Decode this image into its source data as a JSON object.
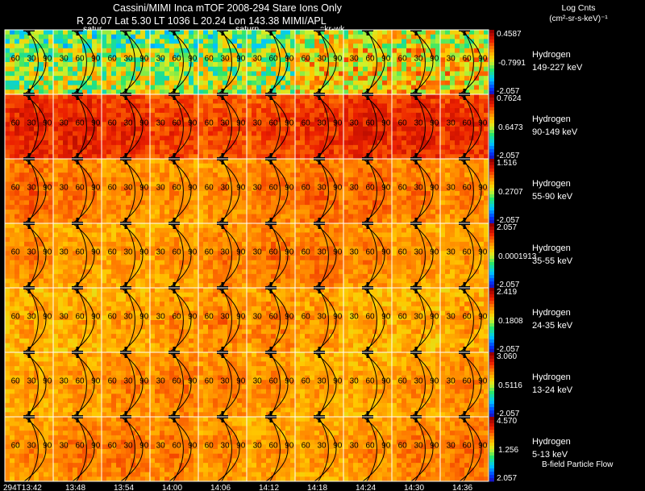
{
  "header": {
    "title": "Cassini/MIMI Inca mTOF  2008-294   Stare   Ions Only",
    "info": "R      20.07 Lat 5.30 LT 1036 L      20.24 Lon      143.38   MIMI/APL",
    "units_line1": "Log Cnts",
    "units_line2": "(cm²-sr-s-keV)⁻¹",
    "target_labels": [
      "satur",
      "saturn",
      "skr-wk"
    ]
  },
  "footer_note": "B-field Particle Flow",
  "colors": {
    "background": "#000000",
    "text": "#ffffff",
    "grid": "#ffffff",
    "contour": "#000000"
  },
  "chart_data": {
    "type": "heatmap",
    "x_tick_labels": [
      "294T13:42",
      "13:48",
      "13:54",
      "14:00",
      "14:06",
      "14:12",
      "14:18",
      "14:24",
      "14:30",
      "14:36"
    ],
    "frames_per_panel": 10,
    "contour_labels": [
      "30",
      "60",
      "90"
    ],
    "colormap": "rainbow (blue-cyan-green-yellow-orange-red-darkred)",
    "panels": [
      {
        "species": "Hydrogen",
        "energy": "149-227 keV",
        "cmax": "0.4587",
        "cmid": "-0.7991",
        "cmin": "-2.057",
        "level": 0.5,
        "variation": 0.4
      },
      {
        "species": "Hydrogen",
        "energy": "90-149 keV",
        "cmax": "0.7624",
        "cmid": "0.6473",
        "cmin": "-2.057",
        "level": 0.86,
        "variation": 0.13
      },
      {
        "species": "Hydrogen",
        "energy": "55-90 keV",
        "cmax": "1.516",
        "cmid": "0.2707",
        "cmin": "-2.057",
        "level": 0.76,
        "variation": 0.12
      },
      {
        "species": "Hydrogen",
        "energy": "35-55 keV",
        "cmax": "2.057",
        "cmid": "0.0001913",
        "cmin": "-2.057",
        "level": 0.74,
        "variation": 0.12
      },
      {
        "species": "Hydrogen",
        "energy": "24-35 keV",
        "cmax": "2.419",
        "cmid": "0.1808",
        "cmin": "-2.057",
        "level": 0.72,
        "variation": 0.14
      },
      {
        "species": "Hydrogen",
        "energy": "13-24 keV",
        "cmax": "3.060",
        "cmid": "0.5116",
        "cmin": "-2.057",
        "level": 0.73,
        "variation": 0.12
      },
      {
        "species": "Hydrogen",
        "energy": "5-13 keV",
        "cmax": "4.570",
        "cmid": "1.256",
        "cmin": "2.057",
        "level": 0.74,
        "variation": 0.12
      }
    ]
  }
}
